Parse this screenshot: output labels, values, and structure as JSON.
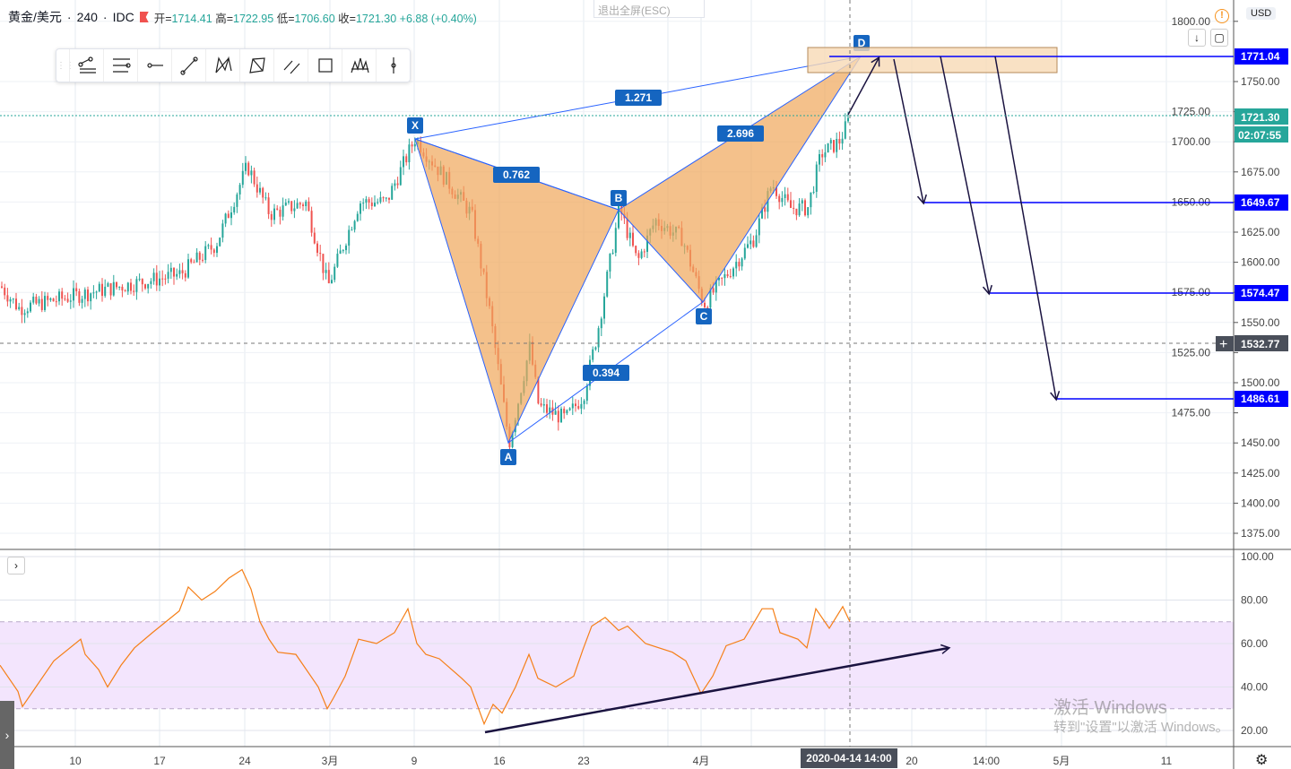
{
  "header": {
    "symbol": "黄金/美元",
    "interval": "240",
    "source": "IDC",
    "open_label": "开=",
    "open": "1714.41",
    "high_label": "高=",
    "high": "1722.95",
    "low_label": "低=",
    "low": "1706.60",
    "close_label": "收=",
    "close": "1721.30",
    "change": "+6.88",
    "change_pct": "(+0.40%)",
    "exit_fullscreen": "退出全屏(ESC)",
    "currency": "USD"
  },
  "toolbar": {
    "tools": [
      "trend-angle-icon",
      "horizontal-lines-icon",
      "horizontal-ray-icon",
      "trend-line-icon",
      "xabcd-pattern-icon",
      "abcd-pattern-icon",
      "parallel-line-icon",
      "rectangle-icon",
      "elliott-wave-icon",
      "vertical-line-icon"
    ]
  },
  "watermark": {
    "line1": "激活 Windows",
    "line2": "转到\"设置\"以激活 Windows。"
  },
  "chart_data": [
    {
      "type": "candlestick",
      "title": "黄金/美元 · 240 · IDC",
      "ylim": [
        1355,
        1815
      ],
      "y_ticks": [
        "1800.00",
        "1750.00",
        "1725.00",
        "1700.00",
        "1675.00",
        "1650.00",
        "1625.00",
        "1600.00",
        "1575.00",
        "1550.00",
        "1525.00",
        "1500.00",
        "1475.00",
        "1450.00",
        "1425.00",
        "1400.00",
        "1375.00"
      ],
      "x_ticks": [
        "10",
        "17",
        "24",
        "3月",
        "9",
        "16",
        "23",
        "4月",
        "2020-04-14  14:00",
        "20",
        "14:00",
        "5月",
        "11"
      ],
      "price_path": [
        [
          "02-06",
          1580
        ],
        [
          "02-07",
          1562
        ],
        [
          "02-12",
          1575
        ],
        [
          "02-18",
          1590
        ],
        [
          "02-21",
          1615
        ],
        [
          "02-24",
          1680
        ],
        [
          "02-25",
          1640
        ],
        [
          "02-28",
          1650
        ],
        [
          "03-02",
          1580
        ],
        [
          "03-04",
          1650
        ],
        [
          "03-06",
          1650
        ],
        [
          "03-09",
          1703
        ],
        [
          "03-11",
          1665
        ],
        [
          "03-12",
          1640
        ],
        [
          "03-13",
          1560
        ],
        [
          "03-16",
          1450
        ],
        [
          "03-17",
          1530
        ],
        [
          "03-18",
          1480
        ],
        [
          "03-20",
          1470
        ],
        [
          "03-23",
          1490
        ],
        [
          "03-24",
          1540
        ],
        [
          "03-25",
          1645
        ],
        [
          "03-26",
          1600
        ],
        [
          "03-27",
          1635
        ],
        [
          "03-30",
          1620
        ],
        [
          "04-01",
          1565
        ],
        [
          "04-03",
          1590
        ],
        [
          "04-06",
          1620
        ],
        [
          "04-07",
          1665
        ],
        [
          "04-08",
          1645
        ],
        [
          "04-09",
          1645
        ],
        [
          "04-10",
          1690
        ],
        [
          "04-13",
          1700
        ],
        [
          "04-14",
          1721.3
        ]
      ],
      "pattern": {
        "points": [
          {
            "label": "X",
            "price": 1703
          },
          {
            "label": "A",
            "price": 1451
          },
          {
            "label": "B",
            "price": 1645
          },
          {
            "label": "C",
            "price": 1568
          },
          {
            "label": "D",
            "price": 1771.04
          }
        ],
        "ratios": {
          "XB": "0.762",
          "AC": "0.394",
          "BD": "2.696",
          "XD": "1.271"
        }
      },
      "targets": [
        "1771.04",
        "1649.67",
        "1574.47",
        "1486.61"
      ],
      "last_price": "1721.30",
      "countdown": "02:07:55",
      "crosshair_price": "1532.77",
      "colors": {
        "up": "#26a69a",
        "down": "#ef5350",
        "pattern_fill": "#f0a65a",
        "pattern_line": "#2962ff",
        "target_line": "#0000ff",
        "target_label": "#0000ff",
        "last_price": "#26a69a",
        "arrows": "#1a1340"
      }
    },
    {
      "type": "line",
      "name": "RSI",
      "ylim": [
        12,
        102
      ],
      "y_ticks": [
        "100.00",
        "80.00",
        "60.00",
        "40.00",
        "20.00"
      ],
      "bands": [
        30,
        70
      ],
      "values": [
        [
          0,
          50
        ],
        [
          20,
          38
        ],
        [
          25,
          31
        ],
        [
          40,
          40
        ],
        [
          60,
          52
        ],
        [
          90,
          62
        ],
        [
          95,
          55
        ],
        [
          110,
          48
        ],
        [
          120,
          40
        ],
        [
          135,
          50
        ],
        [
          150,
          58
        ],
        [
          170,
          65
        ],
        [
          185,
          70
        ],
        [
          200,
          75
        ],
        [
          210,
          86
        ],
        [
          225,
          80
        ],
        [
          240,
          84
        ],
        [
          255,
          90
        ],
        [
          270,
          94
        ],
        [
          280,
          85
        ],
        [
          290,
          70
        ],
        [
          300,
          62
        ],
        [
          310,
          56
        ],
        [
          330,
          55
        ],
        [
          355,
          40
        ],
        [
          365,
          30
        ],
        [
          372,
          35
        ],
        [
          385,
          45
        ],
        [
          400,
          62
        ],
        [
          420,
          60
        ],
        [
          440,
          65
        ],
        [
          455,
          76
        ],
        [
          465,
          60
        ],
        [
          475,
          55
        ],
        [
          490,
          53
        ],
        [
          515,
          44
        ],
        [
          525,
          40
        ],
        [
          540,
          23
        ],
        [
          550,
          32
        ],
        [
          560,
          28
        ],
        [
          575,
          40
        ],
        [
          590,
          55
        ],
        [
          600,
          44
        ],
        [
          620,
          40
        ],
        [
          640,
          45
        ],
        [
          650,
          57
        ],
        [
          660,
          68
        ],
        [
          675,
          72
        ],
        [
          690,
          66
        ],
        [
          700,
          68
        ],
        [
          720,
          60
        ],
        [
          750,
          56
        ],
        [
          765,
          52
        ],
        [
          782,
          37
        ],
        [
          795,
          45
        ],
        [
          810,
          59
        ],
        [
          830,
          62
        ],
        [
          850,
          76
        ],
        [
          862,
          76
        ],
        [
          870,
          65
        ],
        [
          890,
          62
        ],
        [
          900,
          58
        ],
        [
          910,
          76
        ],
        [
          925,
          67
        ],
        [
          940,
          77
        ],
        [
          948,
          70
        ]
      ],
      "trendline_color": "#1a1340",
      "line_color": "#f57f17",
      "band_fill": "#f3e5fd"
    }
  ]
}
